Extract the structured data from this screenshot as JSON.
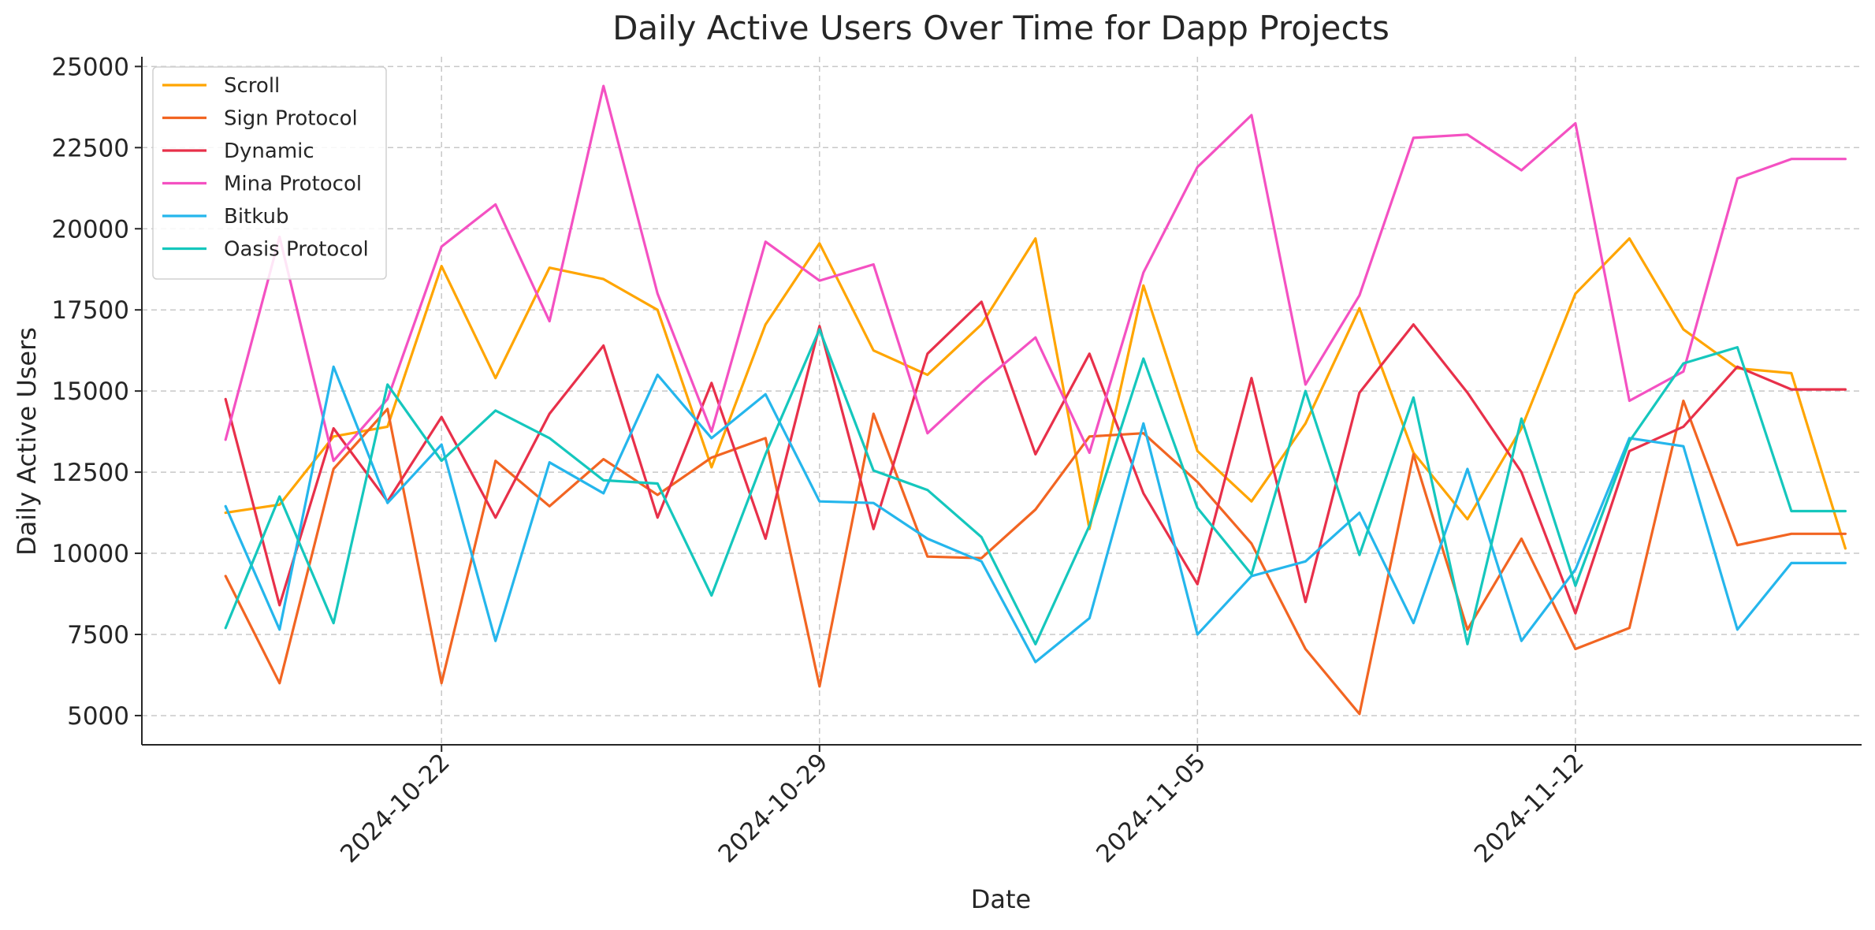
{
  "chart_data": {
    "type": "line",
    "title": "Daily Active Users Over Time for Dapp Projects",
    "xlabel": "Date",
    "ylabel": "Daily Active Users",
    "ylim": [
      4100,
      25300
    ],
    "yticks": [
      5000,
      7500,
      10000,
      12500,
      15000,
      17500,
      20000,
      22500,
      25000
    ],
    "ytick_labels": [
      "5000",
      "7500",
      "10000",
      "12500",
      "15000",
      "17500",
      "20000",
      "22500",
      "25000"
    ],
    "x": [
      "2024-10-18",
      "2024-10-19",
      "2024-10-20",
      "2024-10-21",
      "2024-10-22",
      "2024-10-23",
      "2024-10-24",
      "2024-10-25",
      "2024-10-26",
      "2024-10-27",
      "2024-10-28",
      "2024-10-29",
      "2024-10-30",
      "2024-10-31",
      "2024-11-01",
      "2024-11-02",
      "2024-11-03",
      "2024-11-04",
      "2024-11-05",
      "2024-11-06",
      "2024-11-07",
      "2024-11-08",
      "2024-11-09",
      "2024-11-10",
      "2024-11-11",
      "2024-11-12",
      "2024-11-13",
      "2024-11-14",
      "2024-11-15",
      "2024-11-16",
      "2024-11-17"
    ],
    "xticks": [
      "2024-10-22",
      "2024-10-29",
      "2024-11-05",
      "2024-11-12"
    ],
    "xlim_days": [
      -1.55,
      30.3
    ],
    "grid": true,
    "legend_position": "top-left",
    "series": [
      {
        "name": "Scroll",
        "color": "#FFA500",
        "values": [
          11250,
          11500,
          13600,
          13900,
          18850,
          15400,
          18800,
          18450,
          17500,
          12650,
          17050,
          19550,
          16250,
          15500,
          17050,
          19700,
          10750,
          18250,
          13150,
          11600,
          14000,
          17550,
          13100,
          11050,
          13850,
          18000,
          19700,
          16900,
          15700,
          15550,
          10150
        ]
      },
      {
        "name": "Sign Protocol",
        "color": "#F26522",
        "values": [
          9300,
          6000,
          12600,
          14450,
          6000,
          12850,
          11450,
          12900,
          11800,
          12950,
          13550,
          5900,
          14300,
          9900,
          9850,
          11350,
          13600,
          13700,
          12200,
          10300,
          7050,
          5050,
          13050,
          7650,
          10450,
          7050,
          7700,
          14700,
          10250,
          10600,
          10600
        ]
      },
      {
        "name": "Dynamic",
        "color": "#E8304A",
        "values": [
          14750,
          8400,
          13850,
          11600,
          14200,
          11100,
          14300,
          16400,
          11100,
          15250,
          10450,
          17000,
          10750,
          16150,
          17750,
          13050,
          16150,
          11850,
          9050,
          15400,
          8500,
          14950,
          17050,
          14950,
          12500,
          8150,
          13150,
          13900,
          15750,
          15050,
          15050
        ]
      },
      {
        "name": "Mina Protocol",
        "color": "#F451C2",
        "values": [
          13500,
          19750,
          12850,
          14750,
          19450,
          20750,
          17150,
          24400,
          18000,
          13750,
          19600,
          18400,
          18900,
          13700,
          15250,
          16650,
          13100,
          18650,
          21900,
          23500,
          15200,
          17950,
          22800,
          22900,
          21800,
          23250,
          14700,
          15600,
          21550,
          22150,
          22150
        ]
      },
      {
        "name": "Bitkub",
        "color": "#25B6EC",
        "values": [
          11450,
          7650,
          15750,
          11550,
          13350,
          7300,
          12800,
          11850,
          15500,
          13550,
          14900,
          11600,
          11550,
          10450,
          9750,
          6650,
          8000,
          14000,
          7500,
          9300,
          9750,
          11250,
          7850,
          12600,
          7300,
          9500,
          13550,
          13300,
          7650,
          9700,
          9700
        ]
      },
      {
        "name": "Oasis Protocol",
        "color": "#15C7BD",
        "values": [
          7700,
          11750,
          7850,
          15200,
          12850,
          14400,
          13550,
          12250,
          12150,
          8700,
          13050,
          16900,
          12550,
          11950,
          10500,
          7200,
          10850,
          16000,
          11400,
          9350,
          15000,
          9950,
          14800,
          7200,
          14150,
          9000,
          13450,
          15850,
          16350,
          11300,
          11300
        ]
      }
    ]
  }
}
